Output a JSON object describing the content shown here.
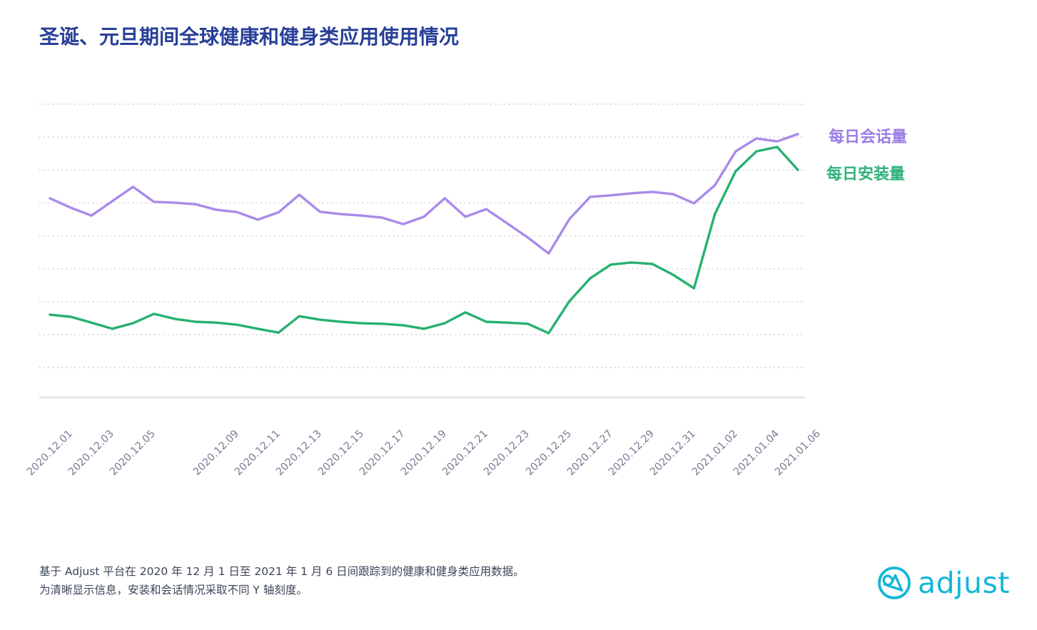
{
  "title": "圣诞、元旦期间全球健康和健身类应用使用情况",
  "legend": {
    "sessions_label": "每日会话量",
    "installs_label": "每日安装量"
  },
  "footnote": {
    "line1": "基于 Adjust 平台在 2020 年 12 月 1 日至 2021 年 1 月 6 日间跟踪到的健康和健身类应用数据。",
    "line2": "为清晰显示信息，安装和会话情况采取不同 Y 轴刻度。"
  },
  "logo": {
    "text": "adjust",
    "color": "#14b7d5"
  },
  "colors": {
    "title": "#283f99",
    "sessions_line": "#a98ae9",
    "installs_line": "#26b170",
    "sessions_label": "#9b7de6",
    "installs_label": "#2fb27a",
    "axis_label": "#7b7b94",
    "gridline": "#d2d2d9",
    "axis_line": "#e0e0e9",
    "footnote_text": "#3e4559",
    "background": "#ffffff"
  },
  "chart_data": {
    "type": "line",
    "title": "圣诞、元旦期间全球健康和健身类应用使用情况",
    "x": [
      "2020.12.01",
      "2020.12.02",
      "2020.12.03",
      "2020.12.04",
      "2020.12.05",
      "2020.12.06",
      "2020.12.07",
      "2020.12.08",
      "2020.12.09",
      "2020.12.10",
      "2020.12.11",
      "2020.12.12",
      "2020.12.13",
      "2020.12.14",
      "2020.12.15",
      "2020.12.16",
      "2020.12.17",
      "2020.12.18",
      "2020.12.19",
      "2020.12.20",
      "2020.12.21",
      "2020.12.22",
      "2020.12.23",
      "2020.12.24",
      "2020.12.25",
      "2020.12.26",
      "2020.12.27",
      "2020.12.28",
      "2020.12.29",
      "2020.12.30",
      "2020.12.31",
      "2021.01.01",
      "2021.01.02",
      "2021.01.03",
      "2021.01.04",
      "2021.01.05",
      "2021.01.06"
    ],
    "x_tick_labels": [
      "2020.12.01",
      "2020.12.03",
      "2020.12.05",
      "2020.12.09",
      "2020.12.11",
      "2020.12.13",
      "2020.12.15",
      "2020.12.17",
      "2020.12.19",
      "2020.12.21",
      "2020.12.23",
      "2020.12.25",
      "2020.12.27",
      "2020.12.29",
      "2020.12.31",
      "2021.01.02",
      "2021.01.04",
      "2021.01.06"
    ],
    "series": [
      {
        "name": "每日会话量",
        "color": "#a98ae9",
        "values": [
          67.9,
          64.7,
          62.0,
          66.9,
          71.8,
          66.7,
          66.4,
          65.9,
          64.0,
          63.2,
          60.6,
          63.1,
          69.1,
          63.3,
          62.5,
          62.0,
          61.3,
          59.1,
          61.6,
          67.9,
          61.6,
          64.2,
          59.4,
          54.5,
          49.1,
          60.8,
          68.4,
          68.9,
          69.6,
          70.1,
          69.3,
          66.2,
          72.3,
          83.9,
          88.3,
          87.3,
          89.8
        ]
      },
      {
        "name": "每日安装量",
        "color": "#26b170",
        "values": [
          28.2,
          27.5,
          25.5,
          23.4,
          25.3,
          28.5,
          26.8,
          25.8,
          25.5,
          24.8,
          23.4,
          22.1,
          27.7,
          26.5,
          25.8,
          25.3,
          25.1,
          24.6,
          23.4,
          25.3,
          29.0,
          25.8,
          25.5,
          25.1,
          21.9,
          32.8,
          40.6,
          45.3,
          46.0,
          45.5,
          41.8,
          37.2,
          62.5,
          77.1,
          83.9,
          85.4,
          77.6
        ]
      }
    ],
    "xlabel": "",
    "ylabel": "",
    "y_tick_labels": [],
    "y_value_scale": "relative 0-100 of plot height (source chart shows no y-axis ticks; dual y-axis scales)",
    "grid": "horizontal dotted lines",
    "legend_position": "right"
  }
}
